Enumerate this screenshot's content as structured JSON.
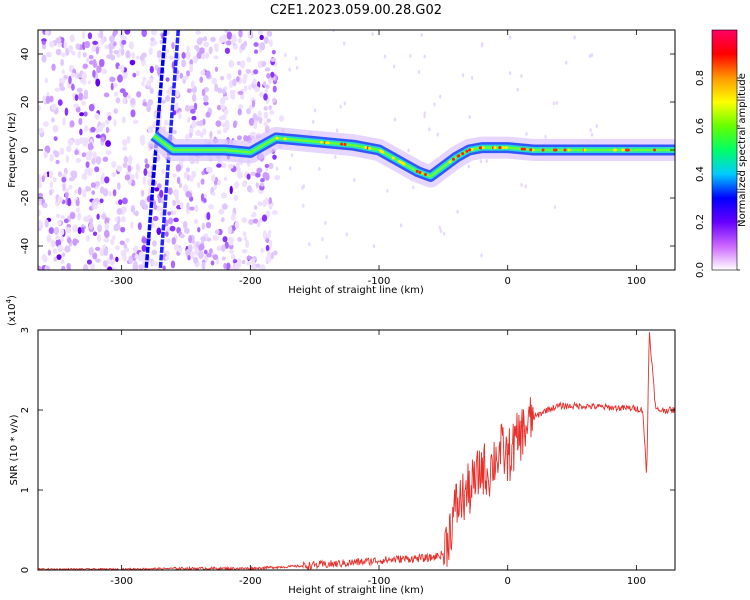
{
  "title": "C2E1.2023.059.00.28.G02",
  "chart_data": [
    {
      "type": "heatmap",
      "xlabel": "Height of straight line (km)",
      "ylabel": "Frequency (Hz)",
      "xlim": [
        -365,
        130
      ],
      "ylim": [
        -50,
        50
      ],
      "xticks": [
        -300,
        -200,
        -100,
        0,
        100
      ],
      "yticks": [
        -40,
        -20,
        0,
        20,
        40
      ],
      "colorbar": {
        "label": "Normalized spectral amplitude",
        "range": [
          0,
          1
        ],
        "ticks": [
          "0.0",
          "0.2",
          "0.4",
          "0.6",
          "0.8"
        ],
        "colors": [
          "#ffffff",
          "#cc66ff",
          "#6600ff",
          "#0000ff",
          "#00ccff",
          "#00ff66",
          "#66ff00",
          "#ffff00",
          "#ff9900",
          "#ff0000",
          "#ff0066"
        ]
      },
      "ridge": {
        "x": [
          -275,
          -260,
          -240,
          -220,
          -200,
          -180,
          -160,
          -140,
          -120,
          -100,
          -90,
          -80,
          -70,
          -60,
          -50,
          -40,
          -30,
          -20,
          -10,
          0,
          20,
          40,
          60,
          80,
          100,
          130
        ],
        "y": [
          6,
          0,
          0,
          0,
          -1,
          5,
          4,
          3,
          2,
          0,
          -3,
          -6,
          -9,
          -11,
          -7,
          -3,
          0,
          1,
          1,
          1,
          0,
          0,
          0,
          0,
          0,
          0
        ]
      }
    },
    {
      "type": "line",
      "xlabel": "Height of straight line (km)",
      "ylabel": "SNR (10 * v/v)",
      "multiplier_label": "(x10",
      "multiplier_exp": "4",
      "xlim": [
        -365,
        130
      ],
      "ylim": [
        0,
        3
      ],
      "xticks": [
        -300,
        -200,
        -100,
        0,
        100
      ],
      "yticks": [
        0,
        1,
        2,
        3
      ],
      "color": "#e8302b",
      "series": [
        {
          "x": [
            -365,
            -300,
            -260,
            -200,
            -160,
            -130,
            -100,
            -80,
            -60,
            -50,
            -45,
            -40,
            -35,
            -30,
            -25,
            -20,
            -15,
            -10,
            -5,
            0,
            10,
            20,
            30,
            40,
            60,
            80,
            100,
            105,
            108,
            110,
            115,
            130
          ],
          "y": [
            0.01,
            0.01,
            0.02,
            0.02,
            0.05,
            0.08,
            0.12,
            0.14,
            0.15,
            0.2,
            0.5,
            0.8,
            0.9,
            1.0,
            1.1,
            1.3,
            1.2,
            1.4,
            1.5,
            1.4,
            1.7,
            1.9,
            2.0,
            2.05,
            2.05,
            2.03,
            2.02,
            2.0,
            1.15,
            3.0,
            2.0,
            2.0
          ]
        }
      ]
    }
  ]
}
